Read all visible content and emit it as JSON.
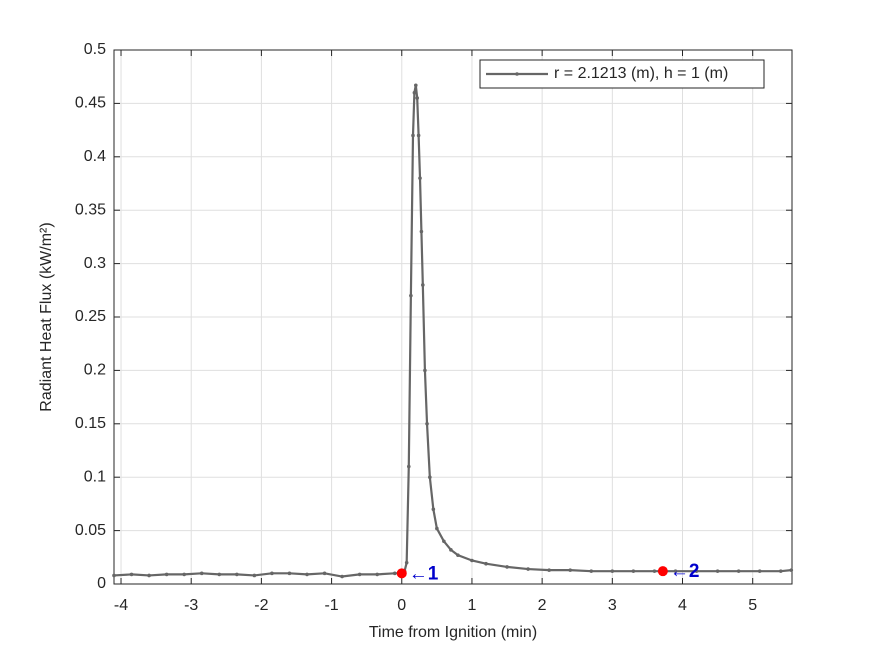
{
  "chart_data": {
    "type": "line",
    "xlabel": "Time from Ignition (min)",
    "ylabel": "Radiant Heat Flux (kW/m²)",
    "x": [
      -4.1,
      -3.85,
      -3.6,
      -3.35,
      -3.1,
      -2.85,
      -2.6,
      -2.35,
      -2.1,
      -1.85,
      -1.6,
      -1.35,
      -1.1,
      -0.85,
      -0.6,
      -0.35,
      -0.1,
      0,
      0.04,
      0.07,
      0.1,
      0.13,
      0.16,
      0.18,
      0.2,
      0.22,
      0.24,
      0.26,
      0.28,
      0.3,
      0.33,
      0.36,
      0.4,
      0.45,
      0.5,
      0.6,
      0.7,
      0.8,
      1.0,
      1.2,
      1.5,
      1.8,
      2.1,
      2.4,
      2.7,
      3.0,
      3.3,
      3.6,
      3.9,
      4.2,
      4.5,
      4.8,
      5.1,
      5.4,
      5.55
    ],
    "series": [
      {
        "name": "r = 2.1213 (m), h = 1 (m)",
        "color": "#666666",
        "values": [
          0.008,
          0.009,
          0.008,
          0.009,
          0.009,
          0.01,
          0.009,
          0.009,
          0.008,
          0.01,
          0.01,
          0.009,
          0.01,
          0.007,
          0.009,
          0.009,
          0.01,
          0.01,
          0.012,
          0.02,
          0.11,
          0.27,
          0.42,
          0.46,
          0.467,
          0.455,
          0.42,
          0.38,
          0.33,
          0.28,
          0.2,
          0.15,
          0.1,
          0.07,
          0.052,
          0.04,
          0.032,
          0.027,
          0.022,
          0.019,
          0.016,
          0.014,
          0.013,
          0.013,
          0.012,
          0.012,
          0.012,
          0.012,
          0.012,
          0.012,
          0.012,
          0.012,
          0.012,
          0.012,
          0.013
        ]
      }
    ],
    "markers": [
      {
        "x": 0,
        "y": 0.01,
        "label": "←1",
        "color": "#ff0000",
        "label_color": "#0000cc"
      },
      {
        "x": 3.72,
        "y": 0.012,
        "label": "←2",
        "color": "#ff0000",
        "label_color": "#0000cc"
      }
    ],
    "xlim": [
      -4.1,
      5.56
    ],
    "ylim": [
      0,
      0.5
    ],
    "xticks": [
      -4,
      -3,
      -2,
      -1,
      0,
      1,
      2,
      3,
      4,
      5
    ],
    "yticks": [
      0,
      0.05,
      0.1,
      0.15,
      0.2,
      0.25,
      0.3,
      0.35,
      0.4,
      0.45,
      0.5
    ],
    "grid": true,
    "legend": "northeast"
  }
}
